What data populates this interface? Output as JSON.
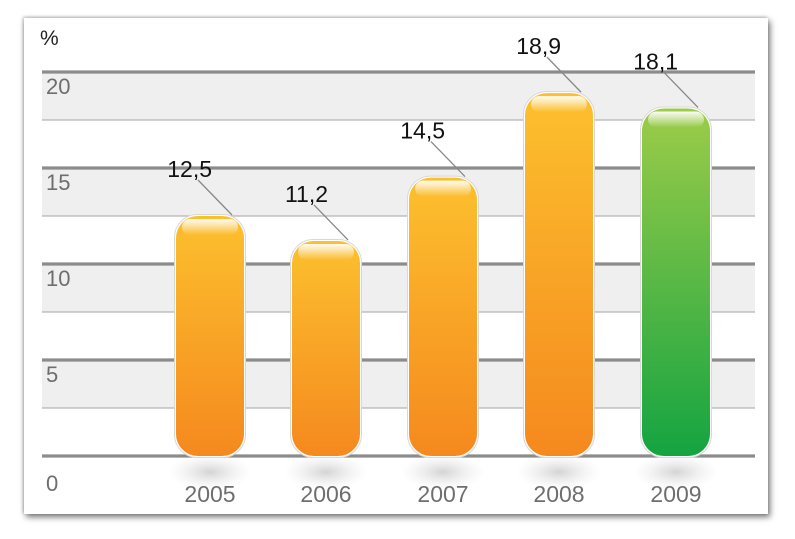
{
  "chart_data": {
    "type": "bar",
    "unit": "%",
    "categories": [
      "2005",
      "2006",
      "2007",
      "2008",
      "2009"
    ],
    "values": [
      12.5,
      11.2,
      14.5,
      18.9,
      18.1
    ],
    "value_labels": [
      "12,5",
      "11,2",
      "14,5",
      "18,9",
      "18,1"
    ],
    "yticks": [
      "0",
      "5",
      "10",
      "15",
      "20"
    ],
    "ylim": [
      0,
      20
    ],
    "grid": true,
    "legend": "none",
    "colors": {
      "bar_top": "#fcc02e",
      "bar_bottom": "#f5891e",
      "highlight_top": "#9dcc49",
      "highlight_bottom": "#14a441",
      "band": "#efefef",
      "gridline": "#8c8c8c"
    },
    "highlight_index": 4
  }
}
